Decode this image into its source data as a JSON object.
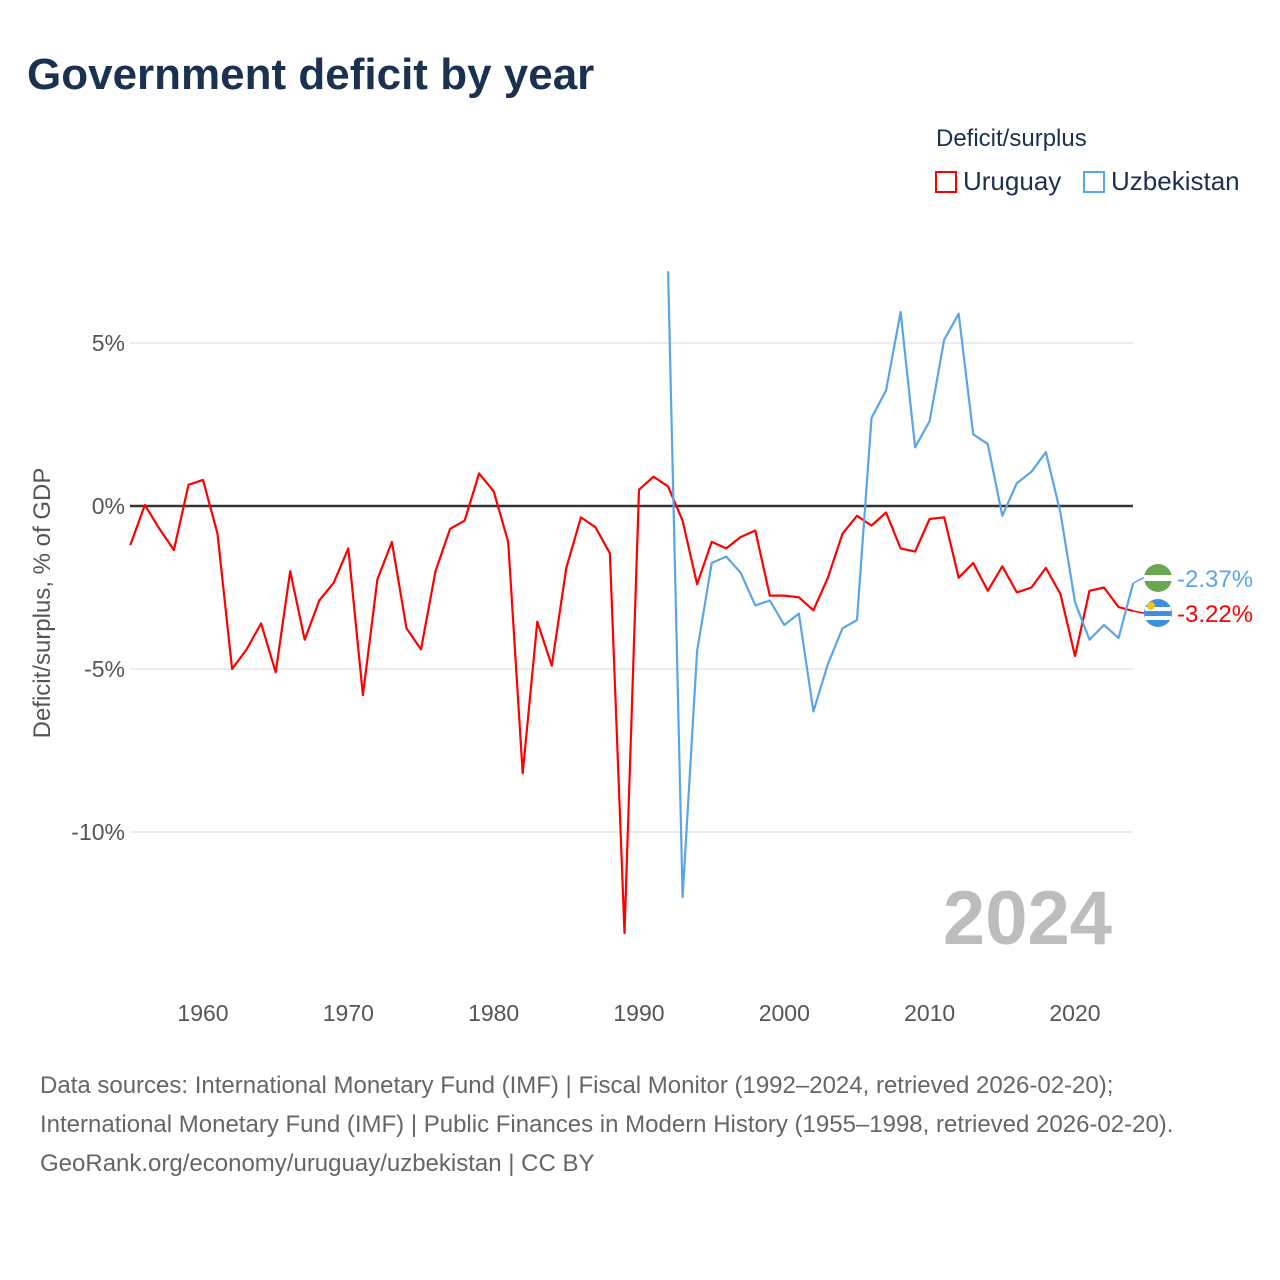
{
  "title": "Government deficit by year",
  "legend": {
    "title": "Deficit/surplus",
    "items": [
      {
        "label": "Uruguay",
        "color": "#ff0000"
      },
      {
        "label": "Uzbekistan",
        "color": "#5aa5e8"
      }
    ]
  },
  "source": {
    "line1": "Data sources: International Monetary Fund (IMF) | Fiscal Monitor (1992–2024, retrieved 2026-02-20); International Monetary Fund (IMF) | Public Finances in Modern History (1955–1998, retrieved 2026-02-20).",
    "line2": "GeoRank.org/economy/uruguay/uzbekistan | CC BY"
  },
  "chart_data": {
    "type": "line",
    "title": "Government deficit by year",
    "ylabel": "Deficit/surplus, % of GDP",
    "xlim": [
      1955,
      2024
    ],
    "ylim": [
      -14,
      8
    ],
    "xticks": [
      1960,
      1970,
      1980,
      1990,
      2000,
      2010,
      2020
    ],
    "xtick_labels": [
      "1960",
      "1970",
      "1980",
      "1990",
      "2000",
      "2010",
      "2020"
    ],
    "yticks": [
      5,
      0,
      -5,
      -10
    ],
    "ytick_labels": [
      "5%",
      "0%",
      "-5%",
      "-10%"
    ],
    "year_watermark": "2024",
    "series": [
      {
        "name": "Uruguay",
        "color": "#ff0000",
        "start_year": 1955,
        "end_label": "-3.22%",
        "values": [
          -1.2,
          0.03,
          -0.7,
          -1.35,
          0.65,
          0.8,
          -0.85,
          -5.0,
          -4.4,
          -3.6,
          -5.1,
          -2.0,
          -4.1,
          -2.9,
          -2.35,
          -1.3,
          -5.8,
          -2.25,
          -1.1,
          -3.75,
          -4.4,
          -2.0,
          -0.7,
          -0.45,
          1.0,
          0.45,
          -1.1,
          -8.2,
          -3.55,
          -4.9,
          -1.9,
          -0.35,
          -0.65,
          -1.45,
          -13.1,
          0.5,
          0.9,
          0.6,
          -0.45,
          -2.4,
          -1.1,
          -1.3,
          -0.95,
          -0.75,
          -2.75,
          -2.75,
          -2.8,
          -3.2,
          -2.2,
          -0.85,
          -0.3,
          -0.6,
          -0.2,
          -1.3,
          -1.4,
          -0.4,
          -0.35,
          -2.2,
          -1.75,
          -2.6,
          -1.85,
          -2.65,
          -2.5,
          -1.9,
          -2.7,
          -4.6,
          -2.6,
          -2.5,
          -3.1,
          -3.22
        ]
      },
      {
        "name": "Uzbekistan",
        "color": "#5aa5e8",
        "start_year": 1992,
        "end_label": "-2.37%",
        "values": [
          7.2,
          -12.0,
          -4.45,
          -1.75,
          -1.55,
          -2.05,
          -3.05,
          -2.9,
          -3.65,
          -3.3,
          -6.3,
          -4.85,
          -3.75,
          -3.5,
          2.7,
          3.55,
          5.95,
          1.8,
          2.6,
          5.1,
          5.9,
          2.2,
          1.9,
          -0.3,
          0.7,
          1.05,
          1.65,
          -0.2,
          -2.95,
          -4.1,
          -3.65,
          -4.05,
          -2.37
        ]
      }
    ]
  }
}
